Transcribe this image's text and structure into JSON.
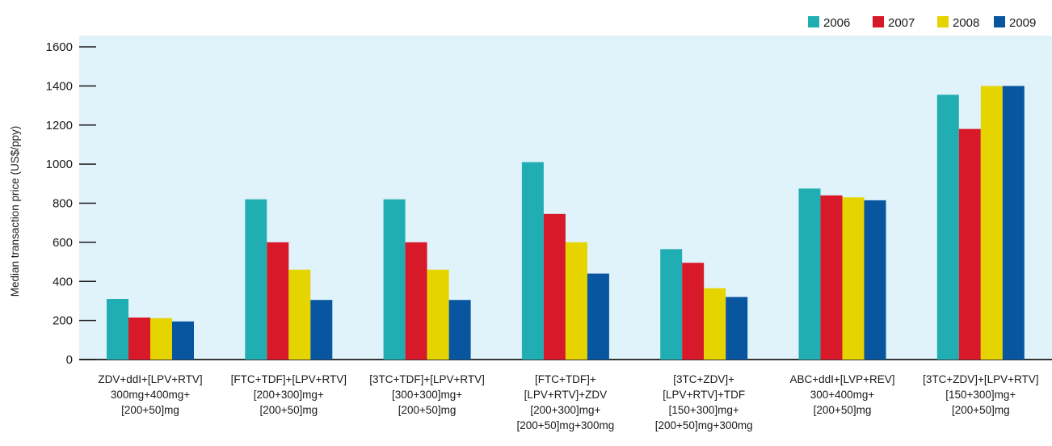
{
  "chart_data": {
    "type": "bar",
    "ylabel": "Median transaction price (US$/ppy)",
    "ylim": [
      0,
      1600
    ],
    "yticks": [
      0,
      200,
      400,
      600,
      800,
      1000,
      1200,
      1400,
      1600
    ],
    "legend_position": "top-right",
    "grid": false,
    "categories": [
      [
        "ZDV+ddI+[LPV+RTV]",
        "300mg+400mg+",
        "[200+50]mg"
      ],
      [
        "[FTC+TDF]+[LPV+RTV]",
        "[200+300]mg+",
        "[200+50]mg"
      ],
      [
        "[3TC+TDF]+[LPV+RTV]",
        "[300+300]mg+",
        "[200+50]mg"
      ],
      [
        "[FTC+TDF]+",
        "[LPV+RTV]+ZDV",
        "[200+300]mg+",
        "[200+50]mg+300mg"
      ],
      [
        "[3TC+ZDV]+",
        "[LPV+RTV]+TDF",
        "[150+300]mg+",
        "[200+50]mg+300mg"
      ],
      [
        "ABC+ddI+[LVP+REV]",
        "300+400mg+",
        "[200+50]mg"
      ],
      [
        "[3TC+ZDV]+[LPV+RTV]",
        "[150+300]mg+",
        "[200+50]mg"
      ]
    ],
    "series": [
      {
        "name": "2006",
        "color": "#21AEB3",
        "values": [
          310,
          820,
          820,
          1010,
          565,
          875,
          1355
        ]
      },
      {
        "name": "2007",
        "color": "#D7192A",
        "values": [
          215,
          600,
          600,
          745,
          495,
          840,
          1180
        ]
      },
      {
        "name": "2008",
        "color": "#E6D400",
        "values": [
          212,
          460,
          460,
          600,
          365,
          830,
          1400
        ]
      },
      {
        "name": "2009",
        "color": "#0856A0",
        "values": [
          195,
          305,
          305,
          440,
          320,
          815,
          1400
        ]
      }
    ]
  },
  "colors": {
    "plot_background": "#E0F3FB",
    "axis": "#1a1a1a"
  }
}
